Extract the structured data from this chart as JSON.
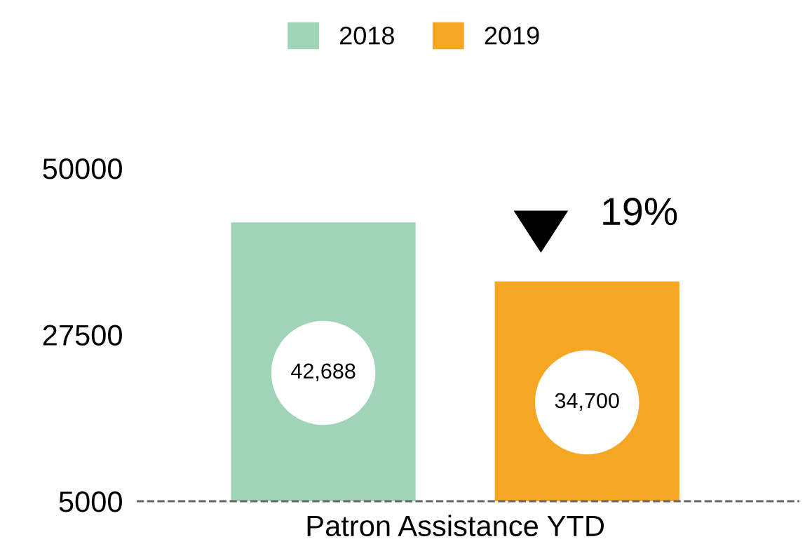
{
  "chart_data": {
    "type": "bar",
    "categories": [
      "Patron Assistance YTD"
    ],
    "series": [
      {
        "name": "2018",
        "color": "#a0d4b7",
        "values": [
          42688
        ],
        "value_labels": [
          "42,688"
        ]
      },
      {
        "name": "2019",
        "color": "#f5a623",
        "values": [
          34700
        ],
        "value_labels": [
          "34,700"
        ]
      }
    ],
    "ylim": [
      5000,
      50000
    ],
    "yticks": [
      5000,
      27500,
      50000
    ],
    "ref_lines": [
      {
        "axis": "y",
        "value": 5000,
        "color": "#666666",
        "line_style": "dashed"
      }
    ],
    "annotations": [
      "19%"
    ],
    "legend": "top",
    "grid": false
  }
}
